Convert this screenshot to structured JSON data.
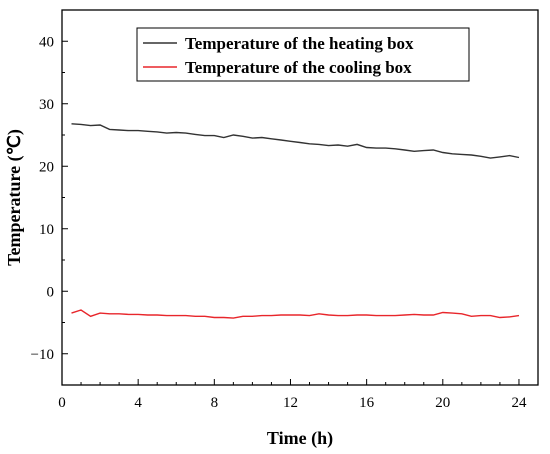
{
  "chart_data": {
    "type": "line",
    "xlabel": "Time (h)",
    "ylabel": "Temperature (℃)",
    "xlim": [
      0,
      25
    ],
    "ylim": [
      -15,
      45
    ],
    "xticks": [
      0,
      4,
      8,
      12,
      16,
      20,
      24
    ],
    "yticks": [
      -10,
      0,
      10,
      20,
      30,
      40
    ],
    "grid": false,
    "legend_position": "top-center",
    "series": [
      {
        "name": "Temperature of the heating box",
        "color": "#333333",
        "x": [
          0.5,
          1,
          1.5,
          2,
          2.5,
          3,
          3.5,
          4,
          4.5,
          5,
          5.5,
          6,
          6.5,
          7,
          7.5,
          8,
          8.5,
          9,
          9.5,
          10,
          10.5,
          11,
          11.5,
          12,
          12.5,
          13,
          13.5,
          14,
          14.5,
          15,
          15.5,
          16,
          16.5,
          17,
          17.5,
          18,
          18.5,
          19,
          19.5,
          20,
          20.5,
          21,
          21.5,
          22,
          22.5,
          23,
          23.5,
          24
        ],
        "y": [
          26.8,
          26.7,
          26.5,
          26.6,
          25.9,
          25.8,
          25.7,
          25.7,
          25.6,
          25.5,
          25.3,
          25.4,
          25.3,
          25.1,
          24.9,
          24.9,
          24.6,
          25.0,
          24.8,
          24.5,
          24.6,
          24.4,
          24.2,
          24.0,
          23.8,
          23.6,
          23.5,
          23.3,
          23.4,
          23.2,
          23.5,
          23.0,
          22.9,
          22.9,
          22.8,
          22.6,
          22.4,
          22.5,
          22.6,
          22.2,
          22.0,
          21.9,
          21.8,
          21.6,
          21.3,
          21.5,
          21.7,
          21.4
        ]
      },
      {
        "name": "Temperature of the cooling box",
        "color": "#e8262b",
        "x": [
          0.5,
          1,
          1.5,
          2,
          2.5,
          3,
          3.5,
          4,
          4.5,
          5,
          5.5,
          6,
          6.5,
          7,
          7.5,
          8,
          8.5,
          9,
          9.5,
          10,
          10.5,
          11,
          11.5,
          12,
          12.5,
          13,
          13.5,
          14,
          14.5,
          15,
          15.5,
          16,
          16.5,
          17,
          17.5,
          18,
          18.5,
          19,
          19.5,
          20,
          20.5,
          21,
          21.5,
          22,
          22.5,
          23,
          23.5,
          24
        ],
        "y": [
          -3.5,
          -3.0,
          -4.0,
          -3.5,
          -3.6,
          -3.6,
          -3.7,
          -3.7,
          -3.8,
          -3.8,
          -3.9,
          -3.9,
          -3.9,
          -4.0,
          -4.0,
          -4.2,
          -4.2,
          -4.3,
          -4.0,
          -4.0,
          -3.9,
          -3.9,
          -3.8,
          -3.8,
          -3.8,
          -3.9,
          -3.6,
          -3.8,
          -3.9,
          -3.9,
          -3.8,
          -3.8,
          -3.9,
          -3.9,
          -3.9,
          -3.8,
          -3.7,
          -3.8,
          -3.8,
          -3.4,
          -3.5,
          -3.6,
          -4.0,
          -3.9,
          -3.9,
          -4.2,
          -4.1,
          -3.9
        ]
      }
    ]
  }
}
